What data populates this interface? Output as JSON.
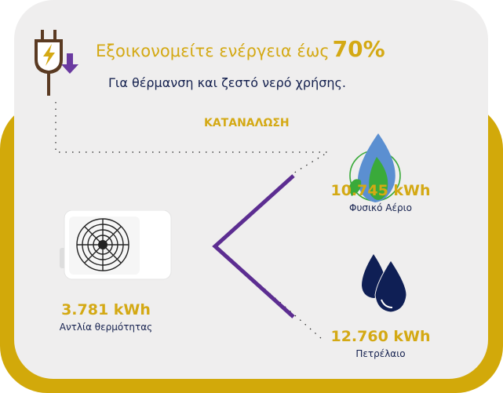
{
  "header": {
    "headline": "Εξοικονομείτε ενέργεια έως",
    "headline_percent": "70%",
    "subtitle": "Για θέρμανση και ζεστό νερό χρήσης."
  },
  "consumption_label": "ΚΑΤΑΝΑΛΩΣΗ",
  "items": [
    {
      "value": "3.781 kWh",
      "label": "Αντλία θερμότητας",
      "icon": "heat-pump-icon"
    },
    {
      "value": "10.745 kWh",
      "label": "Φυσικό Αέριο",
      "icon": "natural-gas-flame-leaf-icon"
    },
    {
      "value": "12.760 kWh",
      "label": "Πετρέλαιο",
      "icon": "oil-drops-icon"
    }
  ],
  "colors": {
    "gold": "#d2a90a",
    "navy": "#14204e",
    "purple": "#5c2d91",
    "panel": "#efeeee"
  }
}
